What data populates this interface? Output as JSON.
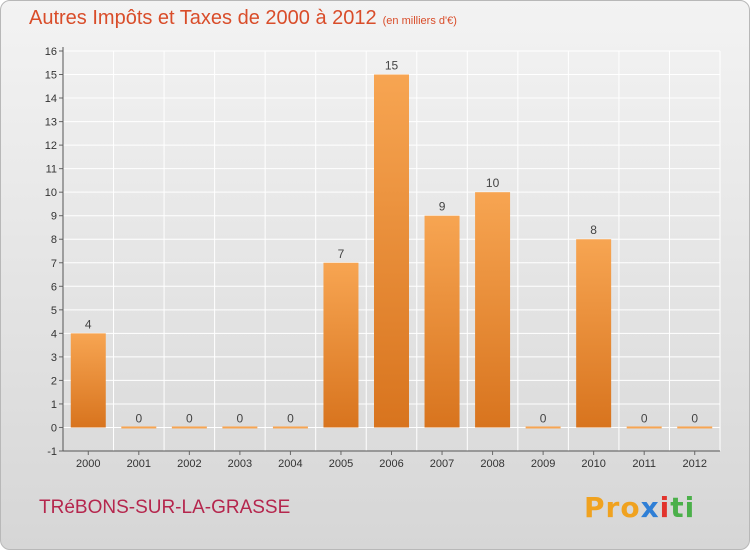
{
  "header": {
    "title": "Autres Impôts et Taxes de 2000 à 2012",
    "unit": "(en milliers d'€)"
  },
  "footer": {
    "commune": "TRéBONS-SUR-LA-GRASSE",
    "logo": [
      "Pro",
      "x",
      "i",
      "ti"
    ]
  },
  "colors": {
    "title": "#d94d2a",
    "commune": "#b5264d",
    "bar_top": "#f7a552",
    "bar_bottom": "#d8741e"
  },
  "chart_data": {
    "type": "bar",
    "title": "Autres Impôts et Taxes de 2000 à 2012",
    "subtitle": "(en milliers d'€)",
    "categories": [
      "2000",
      "2001",
      "2002",
      "2003",
      "2004",
      "2005",
      "2006",
      "2007",
      "2008",
      "2009",
      "2010",
      "2011",
      "2012"
    ],
    "values": [
      4,
      0,
      0,
      0,
      0,
      7,
      15,
      9,
      10,
      0,
      8,
      0,
      0
    ],
    "ylim": [
      -1,
      16
    ],
    "yticks": [
      -1,
      0,
      1,
      2,
      3,
      4,
      5,
      6,
      7,
      8,
      9,
      10,
      11,
      12,
      13,
      14,
      15,
      16
    ],
    "grid": true,
    "legend": "none"
  }
}
